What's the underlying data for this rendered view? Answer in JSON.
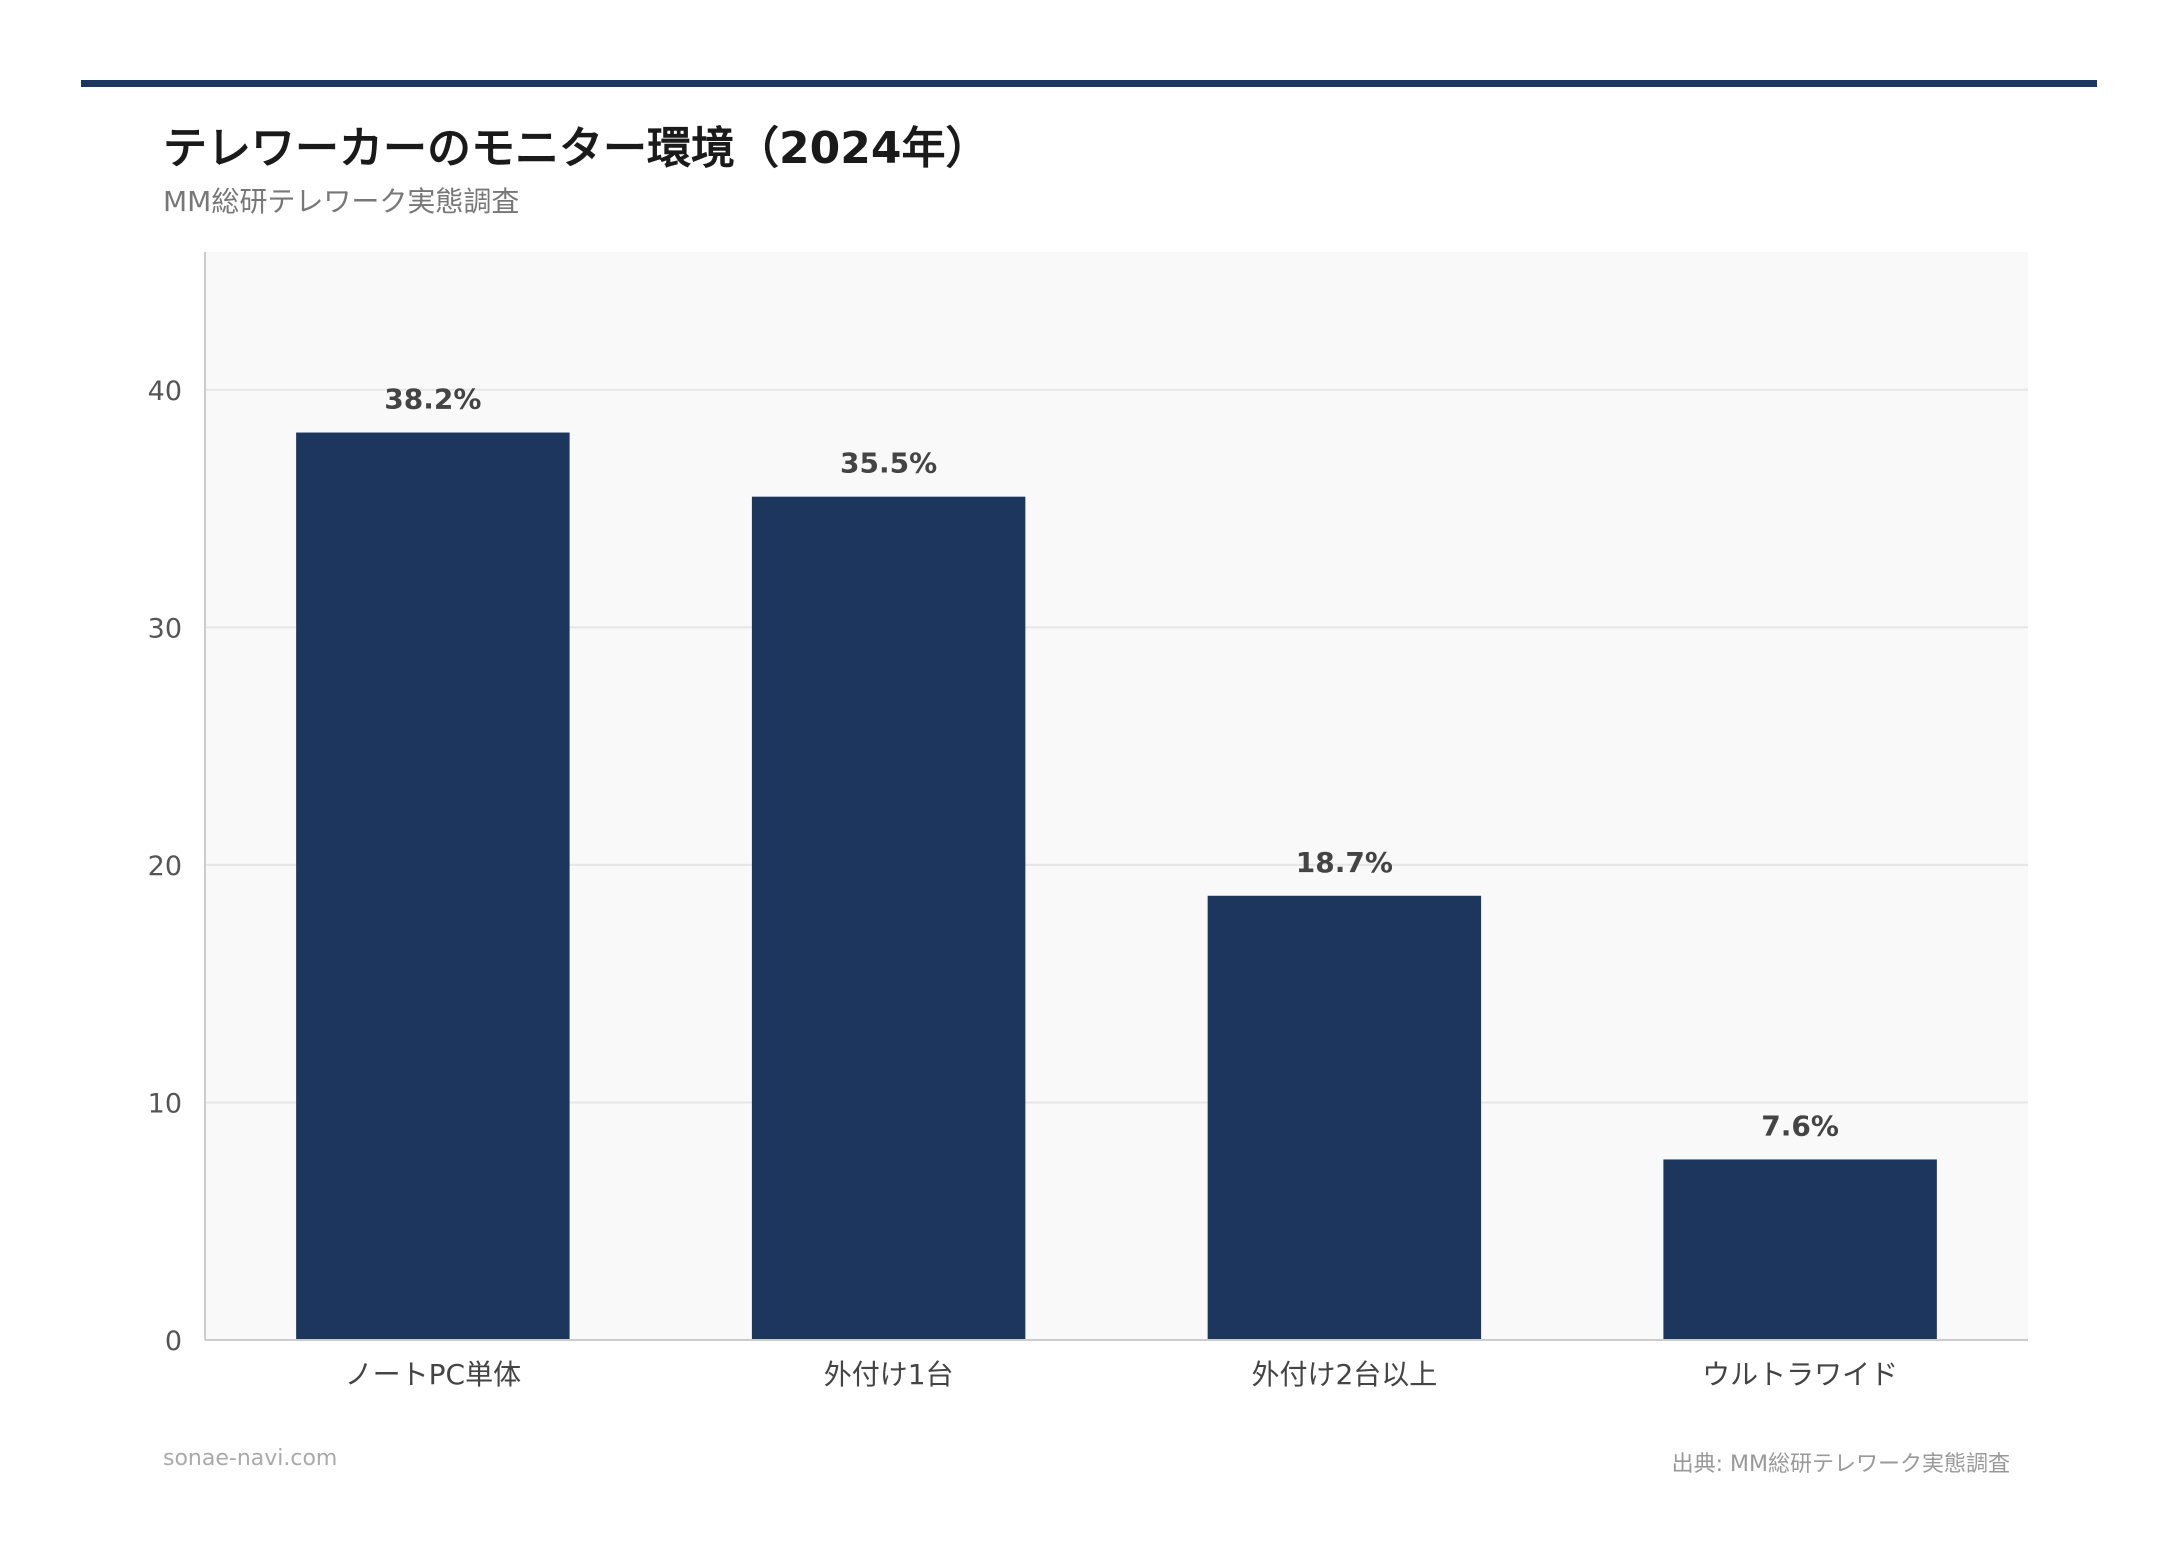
{
  "colors": {
    "accent": "#1c365d",
    "bar": "#1c365d",
    "plot_bg": "#f9f9f9",
    "grid": "#e6e6e6"
  },
  "header": {
    "title": "テレワーカーのモニター環境（2024年）",
    "subtitle": "MM総研テレワーク実態調査"
  },
  "footer": {
    "site": "sonae-navi.com",
    "source": "出典: MM総研テレワーク実態調査"
  },
  "chart_data": {
    "type": "bar",
    "title": "テレワーカーのモニター環境（2024年）",
    "subtitle": "MM総研テレワーク実態調査",
    "categories": [
      "ノートPC単体",
      "外付け1台",
      "外付け2台以上",
      "ウルトラワイド"
    ],
    "values": [
      38.2,
      35.5,
      18.7,
      7.6
    ],
    "data_labels": [
      "38.2%",
      "35.5%",
      "18.7%",
      "7.6%"
    ],
    "y_ticks": [
      0,
      10,
      20,
      30,
      40
    ],
    "ylim": [
      0,
      45.8
    ],
    "xlabel": "",
    "ylabel": "",
    "grid": true,
    "legend": "none"
  }
}
